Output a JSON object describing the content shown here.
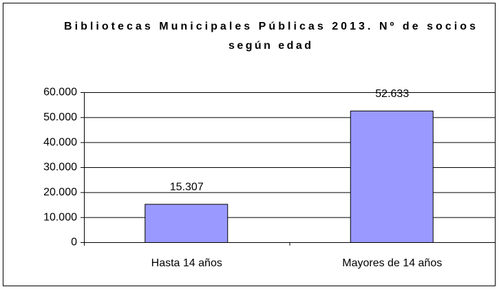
{
  "chart_data": {
    "type": "bar",
    "title": [
      "Bibliotecas Municipales Públicas 2013. Nº de socios",
      "según edad"
    ],
    "categories": [
      "Hasta 14 años",
      "Mayores de 14 años"
    ],
    "values": [
      15307,
      52633
    ],
    "value_labels": [
      "15.307",
      "52.633"
    ],
    "color": "#9999ff",
    "ylim": [
      0,
      60000
    ],
    "yticks": [
      0,
      {
        "value": 10000,
        "label": "10.000"
      },
      {
        "value": 20000,
        "label": "20.000"
      },
      {
        "value": 30000,
        "label": "30.000"
      },
      {
        "value": 40000,
        "label": "40.000"
      },
      {
        "value": 50000,
        "label": "50.000"
      },
      {
        "value": 60000,
        "label": "60.000"
      }
    ],
    "grid": true
  }
}
